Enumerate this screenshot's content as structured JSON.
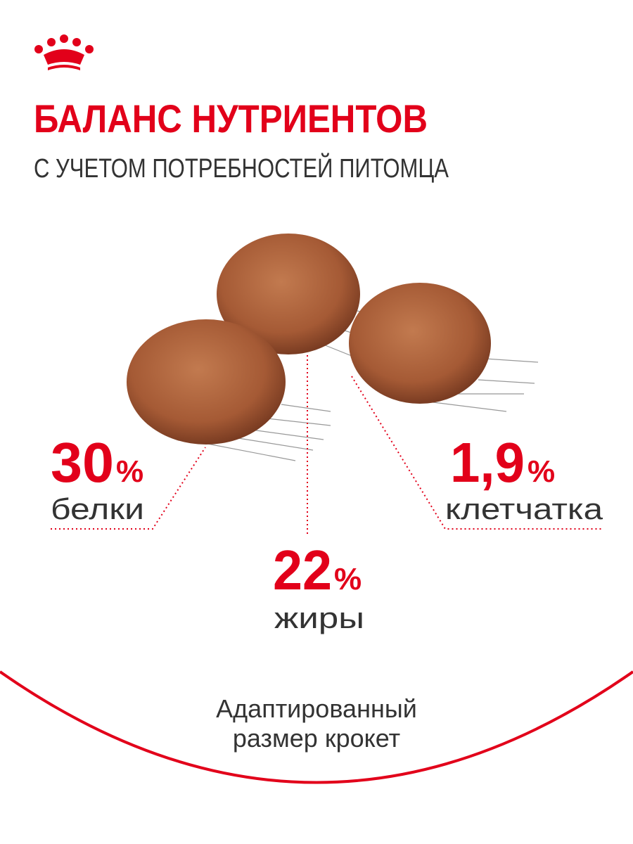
{
  "header": {
    "title": "БАЛАНС НУТРИЕНТОВ",
    "subtitle": "С УЧЕТОМ ПОТРЕБНОСТЕЙ ПИТОМЦА"
  },
  "nutrients": [
    {
      "value": "30",
      "unit": "%",
      "label": "белки"
    },
    {
      "value": "22",
      "unit": "%",
      "label": "жиры"
    },
    {
      "value": "1,9",
      "unit": "%",
      "label": "клетчатка"
    }
  ],
  "footer": {
    "lines": [
      "Адаптированный",
      "размер крокет"
    ]
  }
}
